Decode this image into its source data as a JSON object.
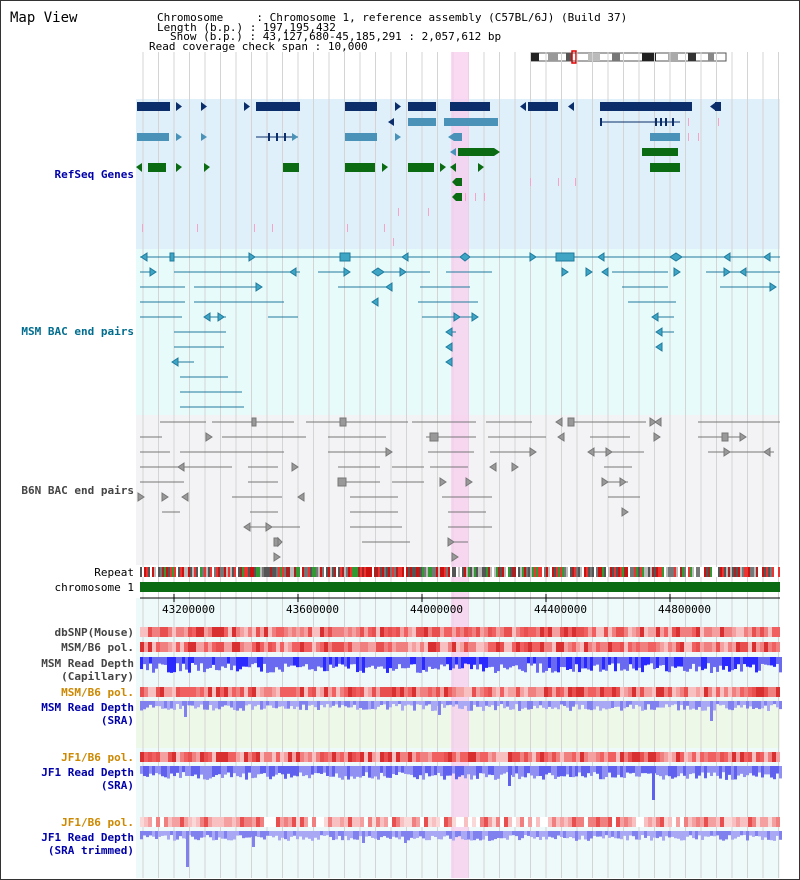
{
  "title": "Map View",
  "info": {
    "chromosome_label": "Chromosome    ",
    "chromosome_value": "Chromosome 1, reference assembly (C57BL/6J) (Build 37)",
    "length_label": "Length (b.p.)",
    "length_value": "197,195,432",
    "show_label": "Show (b.p.)",
    "show_value": "43,127,680-45,185,291 : 2,057,612 bp",
    "coverage_label": "Read coverage check span",
    "coverage_value": "10,000"
  },
  "tracks": {
    "refseq": "RefSeq Genes",
    "msm_bac": "MSM BAC end pairs",
    "b6n_bac": "B6N BAC end pairs",
    "repeat": "Repeat",
    "chromosome": "chromosome 1",
    "dbsnp": "dbSNP(Mouse)",
    "msm_b6_pol": "MSM/B6 pol.",
    "msm_read_depth_cap_1": "MSM Read Depth",
    "msm_read_depth_cap_2": "(Capillary)",
    "msm_b6_pol_2": "MSM/B6 pol.",
    "msm_read_depth_sra_1": "MSM Read Depth",
    "msm_read_depth_sra_2": "(SRA)",
    "jf1_b6_pol": "JF1/B6 pol.",
    "jf1_read_depth_sra_1": "JF1 Read Depth",
    "jf1_read_depth_sra_2": "(SRA)",
    "jf1_b6_pol_2": "JF1/B6 pol.",
    "jf1_read_depth_trim_1": "JF1 Read Depth",
    "jf1_read_depth_trim_2": "(SRA trimmed)"
  },
  "axis": {
    "ticks": [
      "43200000",
      "43600000",
      "44000000",
      "44400000",
      "44800000"
    ]
  },
  "colors": {
    "refseq_bg": "#dff0fa",
    "msm_bg": "#e8fbfb",
    "b6n_bg": "#f3f3f6",
    "highlight": "#f8cdee",
    "gene_dark": "#0b2e6b",
    "gene_mid": "#4a92b8",
    "gene_green": "#0a6b12",
    "pink": "#f6a3c8",
    "bac_teal": "#1f7a9c",
    "bac_gray": "#777777",
    "depth_blue": "#3b3bff",
    "depth_light": "#8f8ff5"
  }
}
